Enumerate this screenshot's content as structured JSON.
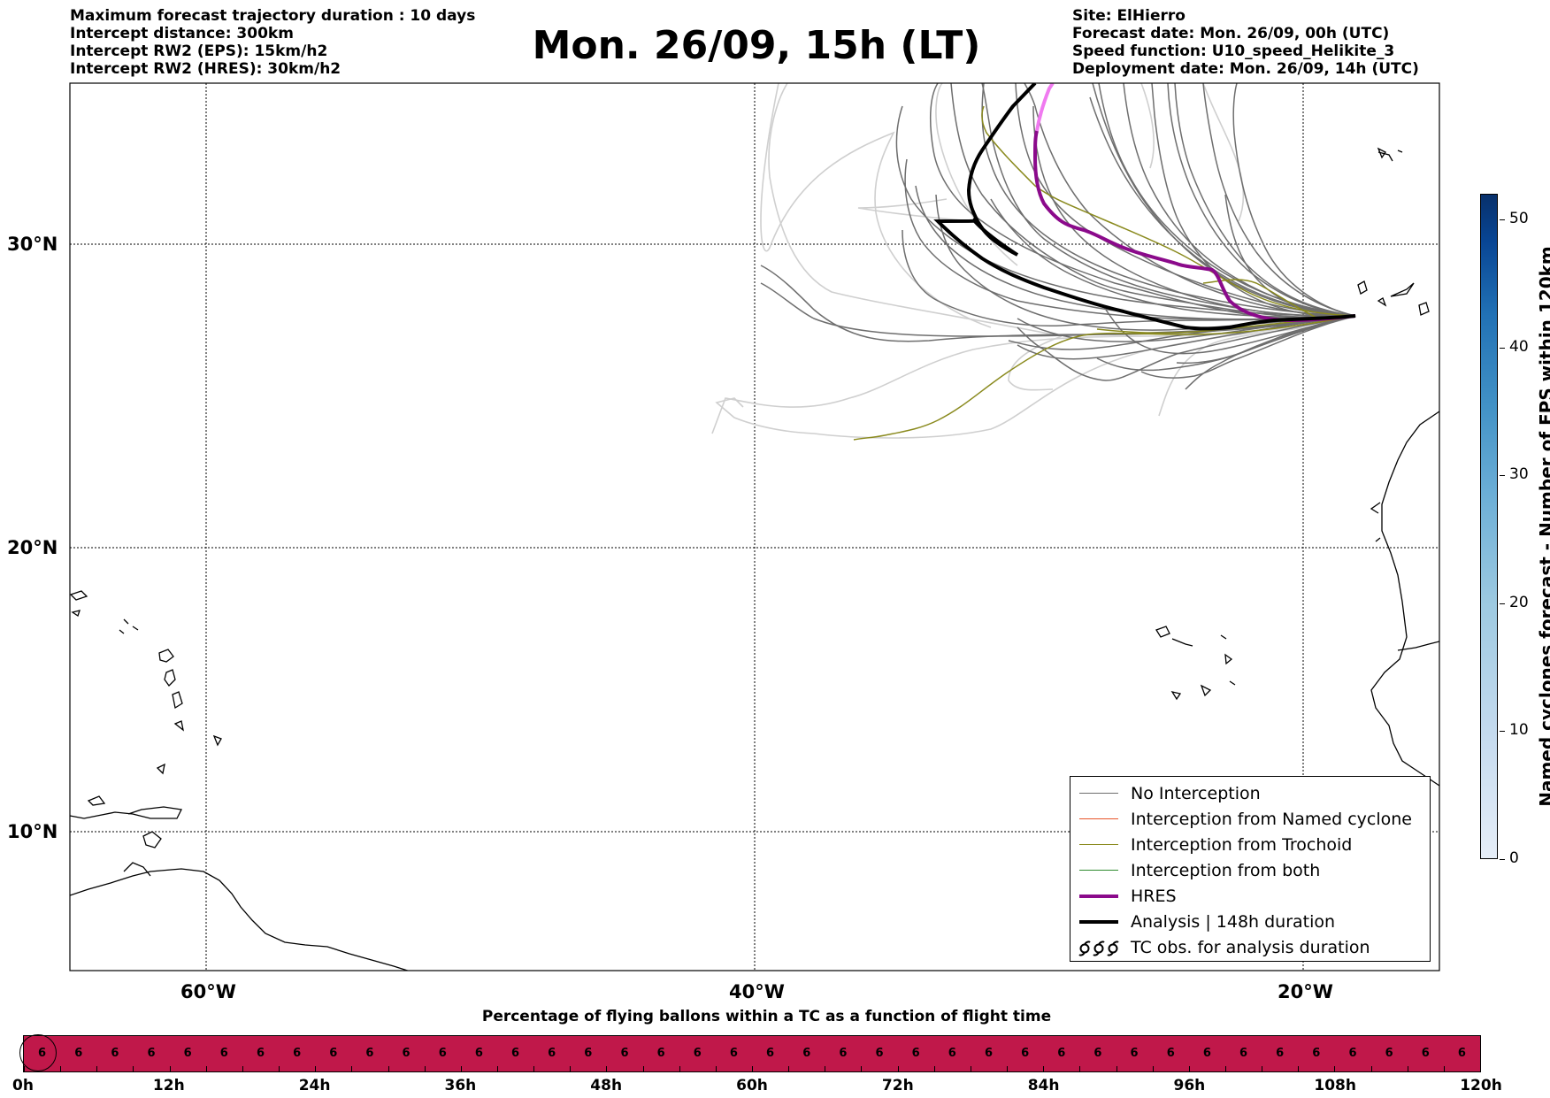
{
  "header": {
    "left": [
      "Maximum forecast trajectory duration : 10 days",
      "Intercept distance: 300km",
      "Intercept RW2 (EPS):  15km/h2",
      "Intercept RW2 (HRES): 30km/h2"
    ],
    "title": "Mon. 26/09, 15h (LT)",
    "right": [
      "Site: ElHierro",
      "Forecast date: Mon. 26/09, 00h (UTC)",
      "Speed function: U10_speed_Helikite_3",
      "Deployment date: Mon. 26/09, 14h (UTC)"
    ]
  },
  "map": {
    "lat_labels": [
      "30°N",
      "20°N",
      "10°N"
    ],
    "lon_labels": [
      "60°W",
      "40°W",
      "20°W"
    ],
    "colors": {
      "no_interception": "#6e6e6e",
      "no_interception_light": "#cfcfcf",
      "named_cyclone": "#e8552a",
      "trochoid": "#8a8a1e",
      "both": "#2e8b2e",
      "hres": "#8b0a8b",
      "hres_light": "#f07af0",
      "analysis": "#000000"
    }
  },
  "legend": {
    "items": [
      {
        "label": "No Interception",
        "color": "#6e6e6e",
        "style": "thin"
      },
      {
        "label": "Interception from Named cyclone",
        "color": "#e8552a",
        "style": "thin"
      },
      {
        "label": "Interception from Trochoid",
        "color": "#8a8a1e",
        "style": "thin"
      },
      {
        "label": "Interception from both",
        "color": "#2e8b2e",
        "style": "thin"
      },
      {
        "label": "HRES",
        "color": "#8b0a8b",
        "style": "thick"
      },
      {
        "label": "Analysis | 148h duration",
        "color": "#000000",
        "style": "thick"
      },
      {
        "label": "TC obs. for analysis duration",
        "color": "#000000",
        "style": "cyclone-symbol"
      }
    ]
  },
  "colorbar": {
    "title": "Named cyclones forecast - Number of EPS within 120km",
    "ticks": [
      "0",
      "10",
      "20",
      "30",
      "40",
      "50"
    ],
    "range": [
      0,
      52
    ]
  },
  "timebar": {
    "title": "Percentage of flying ballons within a TC as a function of flight time",
    "values": [
      6,
      6,
      6,
      6,
      6,
      6,
      6,
      6,
      6,
      6,
      6,
      6,
      6,
      6,
      6,
      6,
      6,
      6,
      6,
      6,
      6,
      6,
      6,
      6,
      6,
      6,
      6,
      6,
      6,
      6,
      6,
      6,
      6,
      6,
      6,
      6,
      6,
      6,
      6,
      6
    ],
    "time_labels": [
      "0h",
      "12h",
      "24h",
      "36h",
      "48h",
      "60h",
      "72h",
      "84h",
      "96h",
      "108h",
      "120h"
    ],
    "bar_color": "#c0184a"
  }
}
